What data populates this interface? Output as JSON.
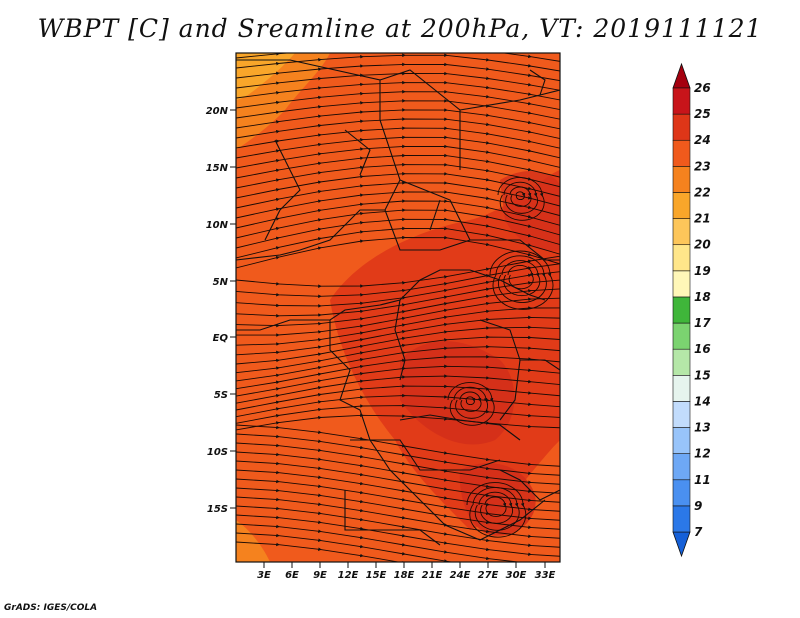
{
  "title": "WBPT [C] and Sreamline at 200hPa, VT: 2019111121",
  "credit": "GrADS: IGES/COLA",
  "map": {
    "lat_ticks": [
      "20N",
      "15N",
      "10N",
      "5N",
      "EQ",
      "5S",
      "10S",
      "15S"
    ],
    "lon_ticks": [
      "3E",
      "6E",
      "9E",
      "12E",
      "15E",
      "18E",
      "21E",
      "24E",
      "27E",
      "30E",
      "33E"
    ],
    "base_color": "#f05a1c",
    "fill_colors": {
      "warm_orange": "#f5821e",
      "yellow_orange": "#f9a62a",
      "dark_red": "#d8321a"
    }
  },
  "colorbar": {
    "labels": [
      "7",
      "9",
      "11",
      "12",
      "13",
      "14",
      "15",
      "16",
      "17",
      "18",
      "19",
      "20",
      "21",
      "22",
      "23",
      "24",
      "25",
      "26"
    ],
    "colors": [
      "#1560d8",
      "#2b78e8",
      "#4a90f0",
      "#6ea8f5",
      "#98c4fa",
      "#c2dcfc",
      "#e6f4ee",
      "#b5e7a8",
      "#7bd370",
      "#3fb63a",
      "#fff7b8",
      "#ffe68a",
      "#fdc65a",
      "#f9a62a",
      "#f5821e",
      "#f05a1c",
      "#de3618",
      "#c8141a",
      "#a4000f"
    ]
  }
}
